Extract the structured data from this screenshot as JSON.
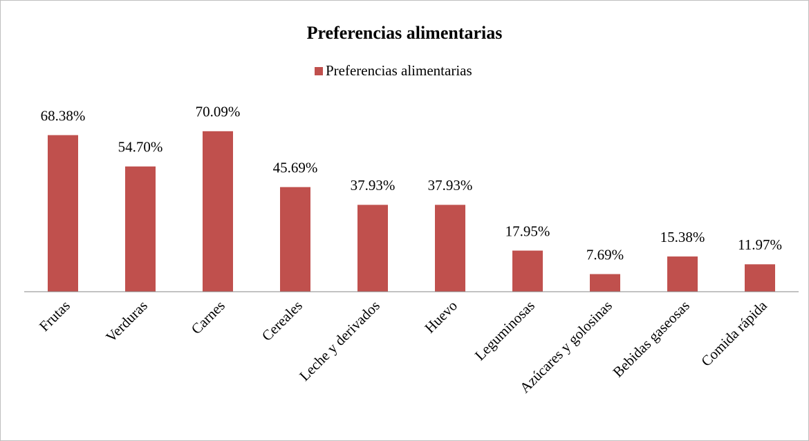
{
  "chart_data": {
    "type": "bar",
    "title": "Preferencias alimentarias",
    "categories": [
      "Frutas",
      "Verduras",
      "Carnes",
      "Cereales",
      "Leche y derivados",
      "Huevo",
      "Leguminosas",
      "Azúcares y golosinas",
      "Bebidas gaseosas",
      "Comida rápida"
    ],
    "series": [
      {
        "name": "Preferencias alimentarias",
        "color": "#c0504d",
        "values": [
          68.38,
          54.7,
          70.09,
          45.69,
          37.93,
          37.93,
          17.95,
          7.69,
          15.38,
          11.97
        ],
        "value_labels": [
          "68.38%",
          "54.70%",
          "70.09%",
          "45.69%",
          "37.93%",
          "37.93%",
          "17.95%",
          "7.69%",
          "15.38%",
          "11.97%"
        ]
      }
    ],
    "ylim": [
      0,
      80
    ],
    "legend": "top"
  }
}
